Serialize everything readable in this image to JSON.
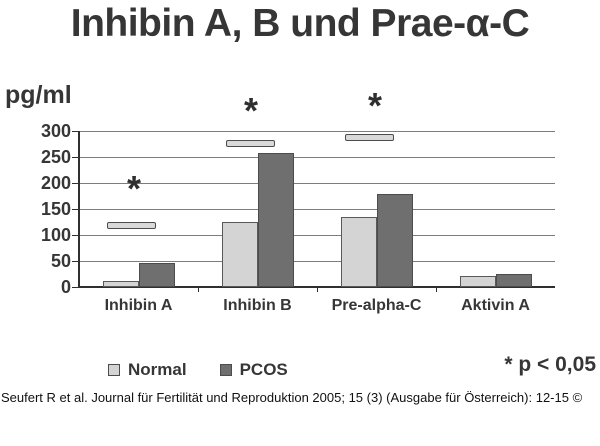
{
  "title": "Inhibin A, B und Prae-α-C",
  "y_unit": "pg/ml",
  "chart_data": {
    "type": "bar",
    "categories": [
      "Inhibin A",
      "Inhibin B",
      "Pre-alpha-C",
      "Aktivin A"
    ],
    "series": [
      {
        "name": "Normal",
        "values": [
          12,
          125,
          135,
          22
        ],
        "color": "#d4d4d4",
        "border": "#58595b"
      },
      {
        "name": "PCOS",
        "values": [
          47,
          257,
          178,
          25
        ],
        "color": "#6f6f6f",
        "border": "#4c4c4c"
      }
    ],
    "marker_series": {
      "name": "reference-marker",
      "values": [
        120,
        277,
        288,
        null
      ],
      "color": "#d9d9d9",
      "border": "#4c4c4c"
    },
    "significance": {
      "symbol": "*",
      "categories": [
        "Inhibin A",
        "Inhibin B",
        "Pre-alpha-C"
      ],
      "note": "* p < 0,05"
    },
    "ylabel": "pg/ml",
    "ylim": [
      0,
      300
    ],
    "yticks": [
      0,
      50,
      100,
      150,
      200,
      250,
      300
    ],
    "grid": true,
    "legend_position": "bottom"
  },
  "legend": {
    "items": [
      {
        "label": "Normal",
        "color": "#d4d4d4"
      },
      {
        "label": "PCOS",
        "color": "#6f6f6f"
      }
    ]
  },
  "citation": "Seufert R et al. Journal für Fertilität und Reproduktion 2005; 15 (3) (Ausgabe für Österreich): 12-15 ©"
}
